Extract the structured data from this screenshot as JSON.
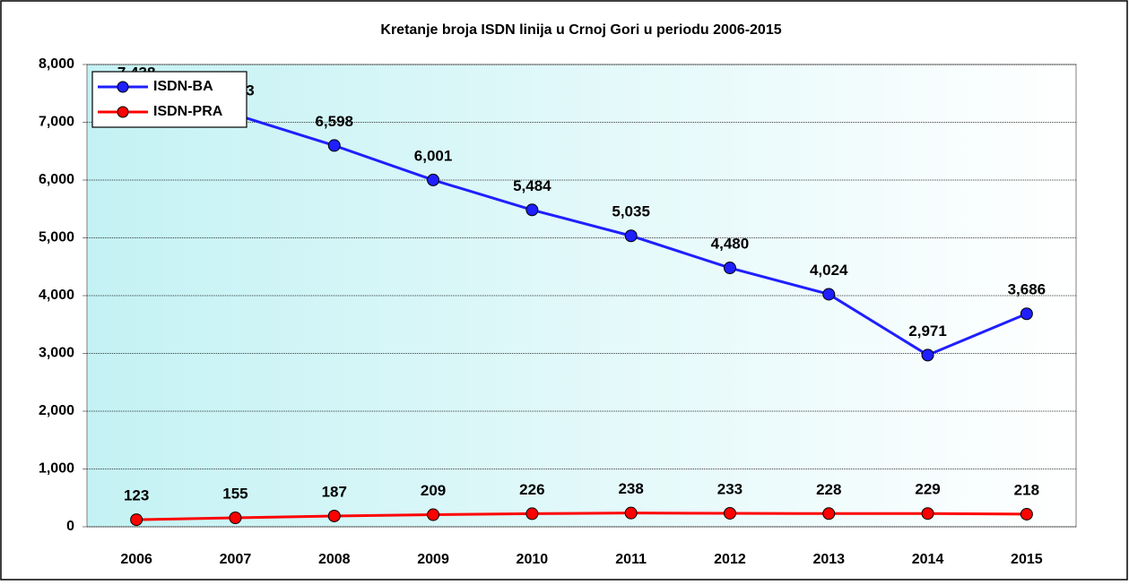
{
  "chart_data": {
    "type": "line",
    "title": "Kretanje broja ISDN linija u Crnoj Gori u periodu 2006-2015",
    "categories": [
      "2006",
      "2007",
      "2008",
      "2009",
      "2010",
      "2011",
      "2012",
      "2013",
      "2014",
      "2015"
    ],
    "series": [
      {
        "name": "ISDN-BA",
        "color": "#1f1fff",
        "values": [
          7438,
          7133,
          6598,
          6001,
          5484,
          5035,
          4480,
          4024,
          2971,
          3686
        ],
        "value_labels": [
          "7,438",
          "7,133",
          "6,598",
          "6,001",
          "5,484",
          "5,035",
          "4,480",
          "4,024",
          "2,971",
          "3,686"
        ]
      },
      {
        "name": "ISDN-PRA",
        "color": "#ff0000",
        "values": [
          123,
          155,
          187,
          209,
          226,
          238,
          233,
          228,
          229,
          218
        ]
      }
    ],
    "ylim": [
      0,
      8000
    ],
    "yticks": [
      0,
      {
        "value": 1000,
        "label": "1,000"
      },
      {
        "value": 2000,
        "label": "2,000"
      },
      {
        "value": 3000,
        "label": "3,000"
      },
      {
        "value": 4000,
        "label": "4,000"
      },
      {
        "value": 5000,
        "label": "5,000"
      },
      {
        "value": 6000,
        "label": "6,000"
      },
      {
        "value": 7000,
        "label": "7,000"
      },
      {
        "value": 8000,
        "label": "8,000"
      }
    ],
    "grid": true,
    "legend": "upper left"
  }
}
